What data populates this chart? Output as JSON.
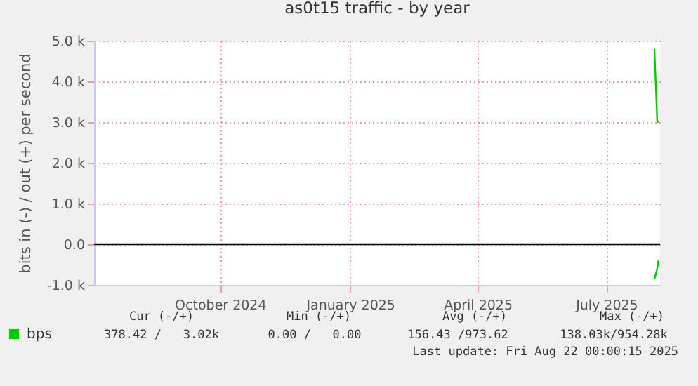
{
  "chart_data": {
    "type": "line",
    "title": "as0t15 traffic - by year",
    "ylabel": "bits in (-) / out (+) per second",
    "xlim": [
      "2024-07-18",
      "2025-08-22"
    ],
    "xticks": [
      {
        "value": "2024-10-15",
        "label": "October 2024"
      },
      {
        "value": "2025-01-15",
        "label": "January 2025"
      },
      {
        "value": "2025-04-15",
        "label": "April 2025"
      },
      {
        "value": "2025-07-15",
        "label": "July 2025"
      }
    ],
    "ylim": [
      -1000,
      5000
    ],
    "yticks": [
      {
        "value": -1000,
        "label": "-1.0 k"
      },
      {
        "value": 0,
        "label": "0.0"
      },
      {
        "value": 1000,
        "label": "1.0 k"
      },
      {
        "value": 2000,
        "label": "2.0 k"
      },
      {
        "value": 3000,
        "label": "3.0 k"
      },
      {
        "value": 4000,
        "label": "4.0 k"
      },
      {
        "value": 5000,
        "label": "5.0 k"
      }
    ],
    "x": [
      "2025-08-18",
      "2025-08-20",
      "2025-08-21"
    ],
    "series": [
      {
        "name": "bps",
        "color": "#00cc00",
        "values": [
          4800,
          3000,
          3020
        ]
      },
      {
        "color": "#00cc00",
        "values": [
          -860,
          -600,
          -380
        ]
      }
    ],
    "ref_lines": [
      {
        "axis": "y",
        "value": 0,
        "color": "#000000"
      }
    ],
    "grid": true,
    "legend": "bottom",
    "marker": "none",
    "line_style": "solid",
    "annotations": [
      "Cur (-/+)",
      "Min (-/+)",
      "Avg (-/+)",
      "Max (-/+)",
      "378.42 /   3.02k",
      "0.00 /   0.00",
      "156.43 /973.62",
      "138.03k/954.28k",
      "Last update: Fri Aug 22 00:00:15 2025"
    ]
  }
}
